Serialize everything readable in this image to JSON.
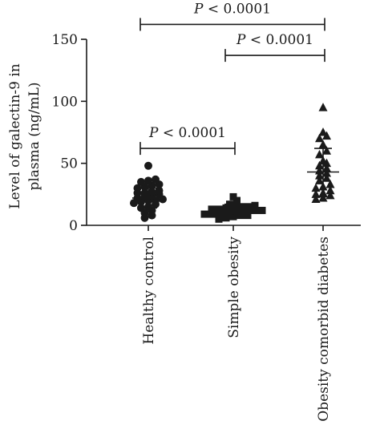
{
  "chart_data": {
    "type": "scatter",
    "ylabel_line1": "Level of galectin-9 in",
    "ylabel_line2": "plasma (ng/mL)",
    "ylim": [
      0,
      150
    ],
    "yticks": [
      "0",
      "50",
      "100",
      "150"
    ],
    "grid": false,
    "categories": [
      "Healthy control",
      "Simple obesity",
      "Obesity comorbid diabetes"
    ],
    "series": [
      {
        "marker": "circle",
        "mean": 22,
        "sd_low": 14,
        "sd_high": 30,
        "values": [
          48,
          37,
          36,
          35,
          33,
          32,
          31,
          30,
          28,
          27,
          26,
          26,
          25,
          24,
          23,
          22,
          21,
          20,
          20,
          19,
          18,
          17,
          15,
          14,
          12,
          10,
          8,
          6
        ]
      },
      {
        "marker": "square",
        "mean": 13,
        "sd_low": 8,
        "sd_high": 17,
        "values": [
          23,
          20,
          17,
          16,
          15,
          15,
          14,
          14,
          13,
          13,
          12,
          12,
          12,
          11,
          11,
          10,
          10,
          9,
          9,
          8,
          8,
          7,
          6,
          5
        ]
      },
      {
        "marker": "triangle",
        "mean": 43,
        "sd_low": 23,
        "sd_high": 62,
        "values": [
          95,
          75,
          72,
          70,
          65,
          60,
          57,
          52,
          50,
          48,
          46,
          44,
          42,
          40,
          38,
          36,
          33,
          31,
          30,
          28,
          26,
          25,
          24,
          22,
          21
        ]
      }
    ],
    "comparisons": [
      {
        "from": 0,
        "to": 2,
        "y": 162,
        "label": "P < 0.0001"
      },
      {
        "from": 1,
        "to": 2,
        "y": 137,
        "label": "P < 0.0001"
      },
      {
        "from": 0,
        "to": 1,
        "y": 62,
        "label": "P < 0.0001"
      }
    ]
  }
}
